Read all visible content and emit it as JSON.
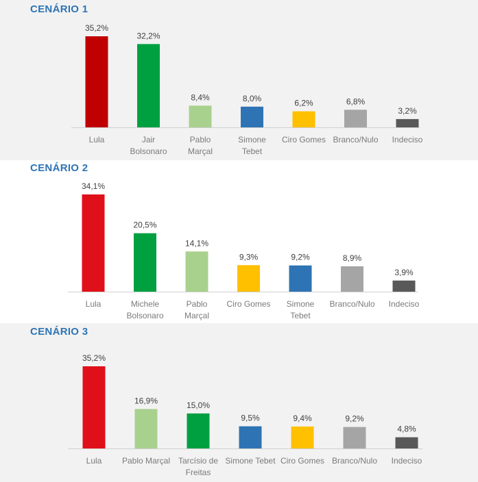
{
  "chart_data": [
    {
      "type": "bar",
      "title": "CENÁRIO 1",
      "categories": [
        [
          "Lula"
        ],
        [
          "Jair",
          "Bolsonaro"
        ],
        [
          "Pablo",
          "Marçal"
        ],
        [
          "Simone",
          "Tebet"
        ],
        [
          "Ciro Gomes"
        ],
        [
          "Branco/Nulo"
        ],
        [
          "Indeciso"
        ]
      ],
      "values": [
        35.2,
        32.2,
        8.4,
        8.0,
        6.2,
        6.8,
        3.2
      ],
      "value_labels": [
        "35,2%",
        "32,2%",
        "8,4%",
        "8,0%",
        "6,2%",
        "6,8%",
        "3,2%"
      ],
      "colors": [
        "#c00000",
        "#00a040",
        "#a9d18e",
        "#2e74b5",
        "#ffc000",
        "#a5a5a5",
        "#595959"
      ],
      "ylim": [
        0,
        35.2
      ]
    },
    {
      "type": "bar",
      "title": "CENÁRIO 2",
      "categories": [
        [
          "Lula"
        ],
        [
          "Michele",
          "Bolsonaro"
        ],
        [
          "Pablo",
          "Marçal"
        ],
        [
          "Ciro Gomes"
        ],
        [
          "Simone",
          "Tebet"
        ],
        [
          "Branco/Nulo"
        ],
        [
          "Indeciso"
        ]
      ],
      "values": [
        34.1,
        20.5,
        14.1,
        9.3,
        9.2,
        8.9,
        3.9
      ],
      "value_labels": [
        "34,1%",
        "20,5%",
        "14,1%",
        "9,3%",
        "9,2%",
        "8,9%",
        "3,9%"
      ],
      "colors": [
        "#e0101a",
        "#00a040",
        "#a9d18e",
        "#ffc000",
        "#2e74b5",
        "#a5a5a5",
        "#595959"
      ],
      "ylim": [
        0,
        34.1
      ]
    },
    {
      "type": "bar",
      "title": "CENÁRIO 3",
      "categories": [
        [
          "Lula"
        ],
        [
          "Pablo Marçal"
        ],
        [
          "Tarcísio de",
          "Freitas"
        ],
        [
          "Simone Tebet"
        ],
        [
          "Ciro Gomes"
        ],
        [
          "Branco/Nulo"
        ],
        [
          "Indeciso"
        ]
      ],
      "values": [
        35.2,
        16.9,
        15.0,
        9.5,
        9.4,
        9.2,
        4.8
      ],
      "value_labels": [
        "35,2%",
        "16,9%",
        "15,0%",
        "9,5%",
        "9,4%",
        "9,2%",
        "4,8%"
      ],
      "colors": [
        "#e0101a",
        "#a9d18e",
        "#00a040",
        "#2e74b5",
        "#ffc000",
        "#a5a5a5",
        "#595959"
      ],
      "ylim": [
        0,
        35.2
      ]
    }
  ]
}
